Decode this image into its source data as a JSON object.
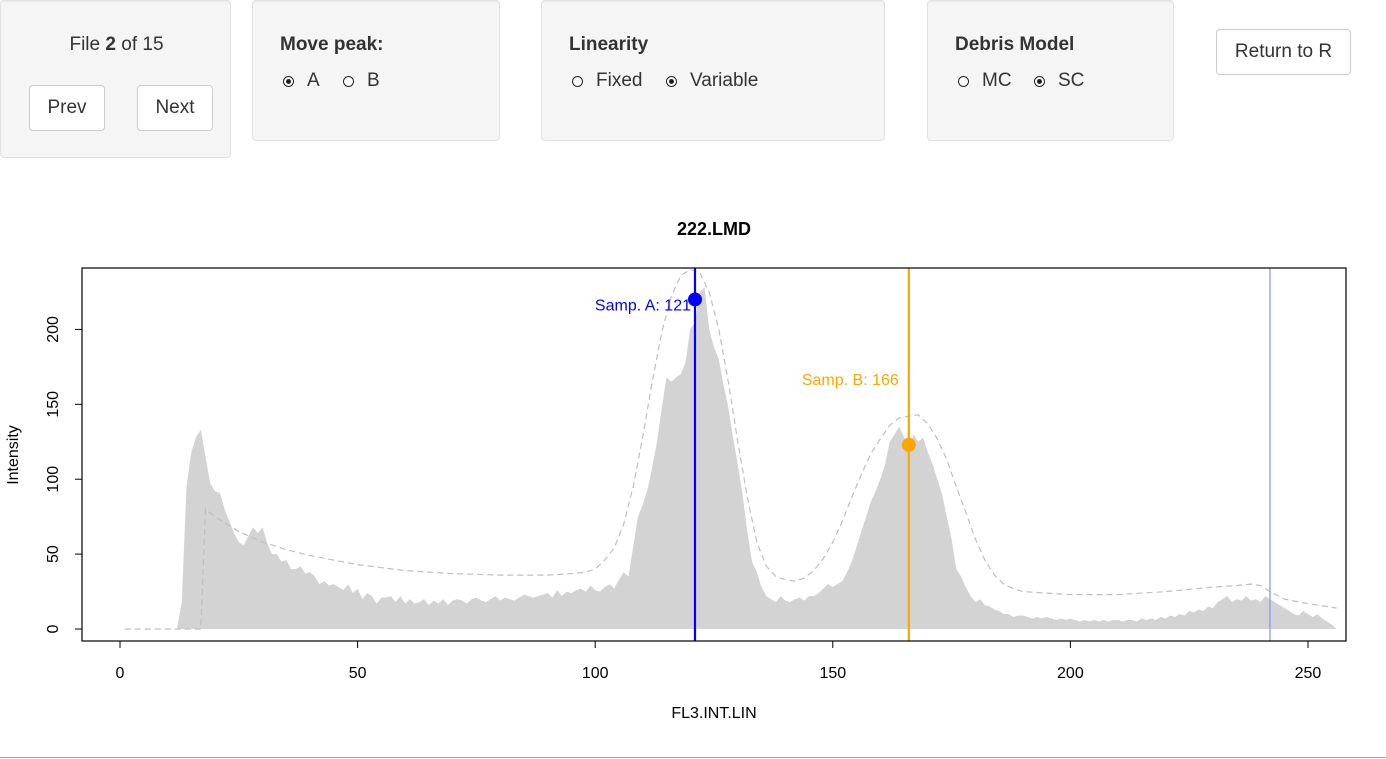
{
  "nav": {
    "file_prefix": "File ",
    "file_index": "2",
    "file_suffix": " of 15",
    "prev_label": "Prev",
    "next_label": "Next"
  },
  "move_peak": {
    "label": "Move peak:",
    "options": [
      {
        "label": "A",
        "selected": true
      },
      {
        "label": "B",
        "selected": false
      }
    ]
  },
  "linearity": {
    "label": "Linearity",
    "options": [
      {
        "label": "Fixed",
        "selected": false
      },
      {
        "label": "Variable",
        "selected": true
      }
    ]
  },
  "debris": {
    "label": "Debris Model",
    "options": [
      {
        "label": "MC",
        "selected": false
      },
      {
        "label": "SC",
        "selected": true
      }
    ]
  },
  "return_label": "Return to R",
  "chart_data": {
    "type": "area",
    "title": "222.LMD",
    "xlabel": "FL3.INT.LIN",
    "ylabel": "Intensity",
    "xlim": [
      -8,
      258
    ],
    "ylim": [
      -8,
      241
    ],
    "x_ticks": [
      0,
      50,
      100,
      150,
      200,
      250
    ],
    "y_ticks": [
      0,
      50,
      100,
      150,
      200
    ],
    "colors": {
      "histogram": "#d3d3d3",
      "fit": "#bfbfbf",
      "peak_a": "#0000ff",
      "peak_b": "#ffa500",
      "range_line": "#8a8aff"
    },
    "histogram": {
      "name": "",
      "points": [
        [
          12,
          0
        ],
        [
          13,
          18
        ],
        [
          14,
          95
        ],
        [
          15,
          118
        ],
        [
          16,
          128
        ],
        [
          17,
          133
        ],
        [
          18,
          115
        ],
        [
          19,
          97
        ],
        [
          20,
          92
        ],
        [
          21,
          91
        ],
        [
          22,
          80
        ],
        [
          23,
          72
        ],
        [
          24,
          64
        ],
        [
          25,
          58
        ],
        [
          26,
          56
        ],
        [
          27,
          62
        ],
        [
          28,
          68
        ],
        [
          29,
          64
        ],
        [
          30,
          68
        ],
        [
          31,
          57
        ],
        [
          32,
          50
        ],
        [
          33,
          50
        ],
        [
          34,
          45
        ],
        [
          35,
          46
        ],
        [
          36,
          40
        ],
        [
          37,
          40
        ],
        [
          38,
          42
        ],
        [
          39,
          37
        ],
        [
          40,
          38
        ],
        [
          41,
          35
        ],
        [
          42,
          30
        ],
        [
          43,
          32
        ],
        [
          44,
          29
        ],
        [
          45,
          30
        ],
        [
          46,
          28
        ],
        [
          47,
          26
        ],
        [
          48,
          30
        ],
        [
          49,
          24
        ],
        [
          50,
          27
        ],
        [
          51,
          20
        ],
        [
          52,
          24
        ],
        [
          53,
          22
        ],
        [
          54,
          17
        ],
        [
          55,
          21
        ],
        [
          56,
          21
        ],
        [
          57,
          22
        ],
        [
          58,
          18
        ],
        [
          59,
          22
        ],
        [
          60,
          17
        ],
        [
          61,
          20
        ],
        [
          62,
          17
        ],
        [
          63,
          18
        ],
        [
          64,
          20
        ],
        [
          65,
          16
        ],
        [
          66,
          19
        ],
        [
          67,
          17
        ],
        [
          68,
          20
        ],
        [
          69,
          16
        ],
        [
          70,
          19
        ],
        [
          71,
          20
        ],
        [
          72,
          19
        ],
        [
          73,
          17
        ],
        [
          74,
          20
        ],
        [
          75,
          21
        ],
        [
          76,
          19
        ],
        [
          77,
          18
        ],
        [
          78,
          20
        ],
        [
          79,
          22
        ],
        [
          80,
          19
        ],
        [
          81,
          21
        ],
        [
          82,
          20
        ],
        [
          83,
          19
        ],
        [
          84,
          21
        ],
        [
          85,
          23
        ],
        [
          86,
          22
        ],
        [
          87,
          21
        ],
        [
          88,
          22
        ],
        [
          89,
          23
        ],
        [
          90,
          24
        ],
        [
          91,
          21
        ],
        [
          92,
          26
        ],
        [
          93,
          22
        ],
        [
          94,
          25
        ],
        [
          95,
          24
        ],
        [
          96,
          26
        ],
        [
          97,
          27
        ],
        [
          98,
          25
        ],
        [
          99,
          29
        ],
        [
          100,
          26
        ],
        [
          101,
          25
        ],
        [
          102,
          28
        ],
        [
          103,
          30
        ],
        [
          104,
          27
        ],
        [
          105,
          33
        ],
        [
          106,
          38
        ],
        [
          107,
          35
        ],
        [
          108,
          55
        ],
        [
          109,
          75
        ],
        [
          110,
          83
        ],
        [
          111,
          93
        ],
        [
          112,
          108
        ],
        [
          113,
          125
        ],
        [
          114,
          147
        ],
        [
          115,
          168
        ],
        [
          116,
          165
        ],
        [
          117,
          168
        ],
        [
          118,
          170
        ],
        [
          119,
          178
        ],
        [
          120,
          200
        ],
        [
          121,
          205
        ],
        [
          122,
          225
        ],
        [
          123,
          228
        ],
        [
          124,
          200
        ],
        [
          125,
          188
        ],
        [
          126,
          180
        ],
        [
          127,
          163
        ],
        [
          128,
          148
        ],
        [
          129,
          128
        ],
        [
          130,
          110
        ],
        [
          131,
          90
        ],
        [
          132,
          65
        ],
        [
          133,
          45
        ],
        [
          134,
          38
        ],
        [
          135,
          28
        ],
        [
          136,
          22
        ],
        [
          137,
          20
        ],
        [
          138,
          18
        ],
        [
          139,
          22
        ],
        [
          140,
          19
        ],
        [
          141,
          18
        ],
        [
          142,
          20
        ],
        [
          143,
          21
        ],
        [
          144,
          19
        ],
        [
          145,
          22
        ],
        [
          146,
          22
        ],
        [
          147,
          24
        ],
        [
          148,
          27
        ],
        [
          149,
          30
        ],
        [
          150,
          28
        ],
        [
          151,
          30
        ],
        [
          152,
          32
        ],
        [
          153,
          38
        ],
        [
          154,
          45
        ],
        [
          155,
          55
        ],
        [
          156,
          65
        ],
        [
          157,
          75
        ],
        [
          158,
          85
        ],
        [
          159,
          92
        ],
        [
          160,
          100
        ],
        [
          161,
          110
        ],
        [
          162,
          125
        ],
        [
          163,
          130
        ],
        [
          164,
          135
        ],
        [
          165,
          128
        ],
        [
          166,
          120
        ],
        [
          167,
          130
        ],
        [
          168,
          125
        ],
        [
          169,
          128
        ],
        [
          170,
          118
        ],
        [
          171,
          110
        ],
        [
          172,
          100
        ],
        [
          173,
          90
        ],
        [
          174,
          75
        ],
        [
          175,
          60
        ],
        [
          176,
          40
        ],
        [
          177,
          35
        ],
        [
          178,
          28
        ],
        [
          179,
          22
        ],
        [
          180,
          18
        ],
        [
          181,
          20
        ],
        [
          182,
          16
        ],
        [
          183,
          15
        ],
        [
          184,
          13
        ],
        [
          185,
          12
        ],
        [
          186,
          10
        ],
        [
          187,
          10
        ],
        [
          188,
          8
        ],
        [
          189,
          9
        ],
        [
          190,
          9
        ],
        [
          191,
          8
        ],
        [
          192,
          7
        ],
        [
          193,
          8
        ],
        [
          194,
          7
        ],
        [
          195,
          8
        ],
        [
          196,
          7
        ],
        [
          197,
          6
        ],
        [
          198,
          7
        ],
        [
          199,
          6
        ],
        [
          200,
          7
        ],
        [
          201,
          6
        ],
        [
          202,
          5
        ],
        [
          203,
          6
        ],
        [
          204,
          5
        ],
        [
          205,
          6
        ],
        [
          206,
          5
        ],
        [
          207,
          6
        ],
        [
          208,
          5
        ],
        [
          209,
          6
        ],
        [
          210,
          6
        ],
        [
          211,
          5
        ],
        [
          212,
          6
        ],
        [
          213,
          6
        ],
        [
          214,
          5
        ],
        [
          215,
          7
        ],
        [
          216,
          6
        ],
        [
          217,
          7
        ],
        [
          218,
          6
        ],
        [
          219,
          8
        ],
        [
          220,
          7
        ],
        [
          221,
          9
        ],
        [
          222,
          8
        ],
        [
          223,
          10
        ],
        [
          224,
          9
        ],
        [
          225,
          12
        ],
        [
          226,
          11
        ],
        [
          227,
          13
        ],
        [
          228,
          12
        ],
        [
          229,
          15
        ],
        [
          230,
          14
        ],
        [
          231,
          18
        ],
        [
          232,
          20
        ],
        [
          233,
          22
        ],
        [
          234,
          18
        ],
        [
          235,
          20
        ],
        [
          236,
          19
        ],
        [
          237,
          22
        ],
        [
          238,
          19
        ],
        [
          239,
          20
        ],
        [
          240,
          18
        ],
        [
          241,
          22
        ],
        [
          242,
          20
        ],
        [
          243,
          18
        ],
        [
          244,
          16
        ],
        [
          245,
          14
        ],
        [
          246,
          12
        ],
        [
          247,
          10
        ],
        [
          248,
          9
        ],
        [
          249,
          12
        ],
        [
          250,
          10
        ],
        [
          251,
          8
        ],
        [
          252,
          10
        ],
        [
          253,
          7
        ],
        [
          254,
          5
        ],
        [
          255,
          3
        ],
        [
          256,
          0
        ]
      ]
    },
    "fit": {
      "name": "",
      "points": [
        [
          1,
          0
        ],
        [
          17,
          0
        ],
        [
          18,
          80
        ],
        [
          20,
          75
        ],
        [
          25,
          65
        ],
        [
          30,
          58
        ],
        [
          35,
          53
        ],
        [
          40,
          49
        ],
        [
          50,
          43
        ],
        [
          60,
          39
        ],
        [
          70,
          37
        ],
        [
          80,
          36
        ],
        [
          90,
          36
        ],
        [
          95,
          37
        ],
        [
          98,
          38
        ],
        [
          100,
          40
        ],
        [
          102,
          46
        ],
        [
          104,
          54
        ],
        [
          106,
          70
        ],
        [
          108,
          95
        ],
        [
          110,
          128
        ],
        [
          112,
          165
        ],
        [
          114,
          198
        ],
        [
          116,
          222
        ],
        [
          118,
          236
        ],
        [
          120,
          240
        ],
        [
          122,
          238
        ],
        [
          124,
          225
        ],
        [
          126,
          200
        ],
        [
          128,
          165
        ],
        [
          130,
          125
        ],
        [
          132,
          88
        ],
        [
          134,
          58
        ],
        [
          136,
          42
        ],
        [
          138,
          35
        ],
        [
          140,
          33
        ],
        [
          142,
          32
        ],
        [
          144,
          34
        ],
        [
          146,
          39
        ],
        [
          148,
          47
        ],
        [
          150,
          58
        ],
        [
          152,
          72
        ],
        [
          154,
          88
        ],
        [
          156,
          103
        ],
        [
          158,
          117
        ],
        [
          160,
          127
        ],
        [
          162,
          136
        ],
        [
          164,
          141
        ],
        [
          166,
          142
        ],
        [
          168,
          143
        ],
        [
          170,
          137
        ],
        [
          172,
          127
        ],
        [
          174,
          113
        ],
        [
          176,
          95
        ],
        [
          178,
          78
        ],
        [
          180,
          60
        ],
        [
          182,
          46
        ],
        [
          184,
          36
        ],
        [
          186,
          30
        ],
        [
          188,
          27
        ],
        [
          190,
          25
        ],
        [
          200,
          23
        ],
        [
          210,
          23
        ],
        [
          220,
          25
        ],
        [
          230,
          28
        ],
        [
          235,
          29
        ],
        [
          238,
          30
        ],
        [
          240,
          29
        ],
        [
          242,
          25
        ],
        [
          245,
          20
        ],
        [
          250,
          17
        ],
        [
          256,
          14
        ]
      ]
    },
    "peaks": [
      {
        "label": "Samp. A:  121",
        "x": 121,
        "y": 220
      },
      {
        "label": "Samp. B:  166",
        "x": 166,
        "y": 123
      }
    ],
    "range_line_x": 242
  }
}
